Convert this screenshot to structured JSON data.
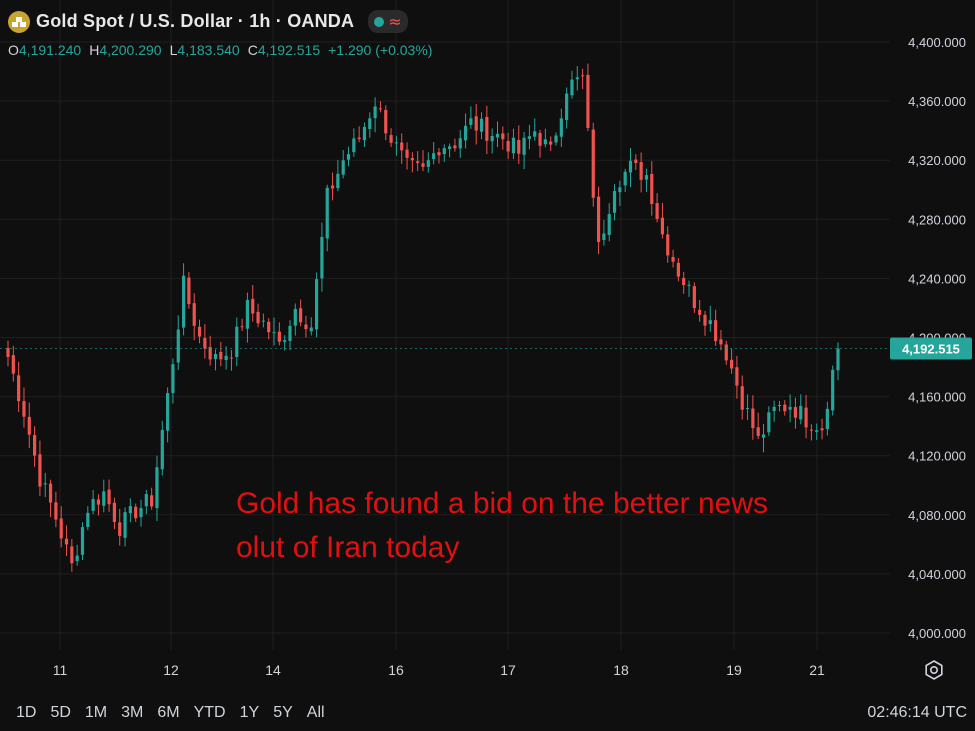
{
  "header": {
    "title": "Gold Spot / U.S. Dollar · 1h · OANDA",
    "wave_symbol": "≈"
  },
  "ohlc": {
    "o_label": "O",
    "o": "4,191.240",
    "h_label": "H",
    "h": "4,200.290",
    "l_label": "L",
    "l": "4,183.540",
    "c_label": "C",
    "c": "4,192.515",
    "change": "+1.290 (+0.03%)"
  },
  "annotation": {
    "line1": "Gold has found a bid on the better news",
    "line2": "olut of Iran today"
  },
  "toolbar": [
    "1D",
    "5D",
    "1M",
    "3M",
    "6M",
    "YTD",
    "1Y",
    "5Y",
    "All"
  ],
  "clock": "02:46:14 UTC",
  "price_label": "4,192.515",
  "colors": {
    "up": "#26a69a",
    "down": "#ef5350",
    "annotation": "#e01010",
    "price_tag": "#26a69a"
  },
  "chart_data": {
    "type": "candlestick",
    "ylim": [
      3980,
      4420
    ],
    "y_ticks": [
      4000,
      4040,
      4080,
      4120,
      4160,
      4200,
      4240,
      4280,
      4320,
      4360,
      4400
    ],
    "y_tick_labels": [
      "4,000.000",
      "4,040.000",
      "4,080.000",
      "4,120.000",
      "4,160.000",
      "4,200.000",
      "4,240.000",
      "4,280.000",
      "4,320.000",
      "4,360.000",
      "4,400.000"
    ],
    "x_ticks": [
      "11",
      "12",
      "14",
      "16",
      "17",
      "18",
      "19",
      "21"
    ],
    "current_price": 4192.515,
    "path": [
      4187,
      4150,
      4105,
      4078,
      4045,
      4085,
      4095,
      4072,
      4083,
      4090,
      4160,
      4235,
      4200,
      4185,
      4192,
      4220,
      4210,
      4195,
      4220,
      4208,
      4295,
      4320,
      4335,
      4360,
      4335,
      4315,
      4312,
      4330,
      4332,
      4345,
      4340,
      4335,
      4325,
      4340,
      4325,
      4370,
      4375,
      4260,
      4305,
      4315,
      4310,
      4270,
      4245,
      4225,
      4210,
      4190,
      4158,
      4130,
      4150,
      4155,
      4145,
      4140,
      4195
    ]
  }
}
